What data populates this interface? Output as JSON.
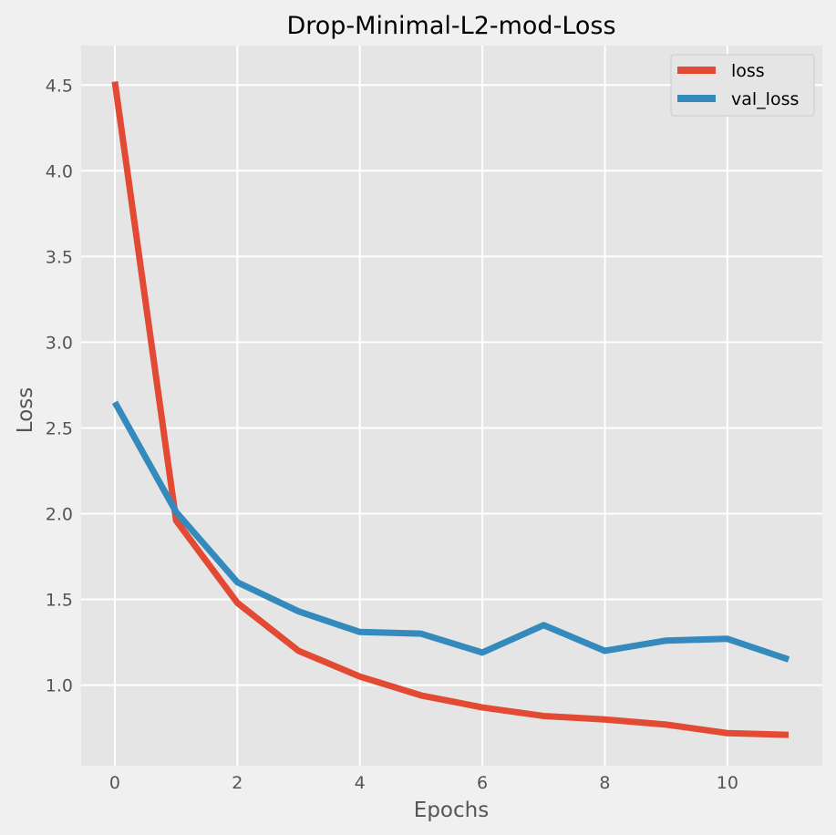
{
  "chart_data": {
    "type": "line",
    "title": "Drop-Minimal-L2-mod-Loss",
    "xlabel": "Epochs",
    "ylabel": "Loss",
    "x": [
      0,
      1,
      2,
      3,
      4,
      5,
      6,
      7,
      8,
      9,
      10,
      11
    ],
    "xticks": [
      0,
      2,
      4,
      6,
      8,
      10
    ],
    "yticks": [
      1.0,
      1.5,
      2.0,
      2.5,
      3.0,
      3.5,
      4.0,
      4.5
    ],
    "xlim": [
      -0.55,
      11.55
    ],
    "ylim": [
      0.53,
      4.73
    ],
    "grid": true,
    "legend_position": "top-right",
    "series": [
      {
        "name": "loss",
        "color": "#E24A33",
        "values": [
          4.52,
          1.96,
          1.48,
          1.2,
          1.05,
          0.94,
          0.87,
          0.82,
          0.8,
          0.77,
          0.72,
          0.71
        ]
      },
      {
        "name": "val_loss",
        "color": "#348ABD",
        "values": [
          2.65,
          2.01,
          1.6,
          1.43,
          1.31,
          1.3,
          1.19,
          1.35,
          1.2,
          1.26,
          1.27,
          1.15
        ]
      }
    ]
  }
}
